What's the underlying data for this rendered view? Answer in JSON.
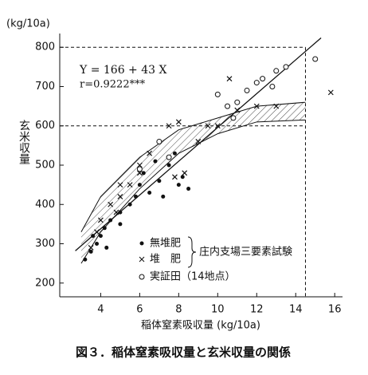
{
  "chart_data": {
    "type": "scatter",
    "title": "図３．稲体窒素吸収量と玄米収量の関係",
    "y_unit": "(kg/10a)",
    "y_label": "玄米収量",
    "x_label": "稲体窒素吸収量 (kg/10a)",
    "xlim": [
      1.9,
      16.4
    ],
    "ylim": [
      165,
      835
    ],
    "xticks": [
      4,
      6,
      8,
      10,
      12,
      14,
      16
    ],
    "yticks": [
      200,
      300,
      400,
      500,
      600,
      700,
      800
    ],
    "series": [
      {
        "name": "無堆肥",
        "color": "#111111",
        "marker": "dot",
        "x": [
          3.2,
          3.5,
          3.8,
          4.0,
          4.2,
          4.5,
          5.0,
          5.5,
          6.0,
          6.2,
          6.5,
          7.0,
          7.5,
          8.0,
          8.5,
          7.2,
          5.8,
          5.0,
          4.3,
          3.6,
          6.8,
          7.8,
          8.2
        ],
        "values": [
          260,
          280,
          300,
          320,
          340,
          360,
          380,
          400,
          450,
          480,
          430,
          460,
          500,
          450,
          440,
          420,
          420,
          350,
          290,
          320,
          510,
          530,
          470
        ]
      },
      {
        "name": "堆　肥",
        "color": "#111111",
        "marker": "cross",
        "x": [
          15.8,
          10.6,
          8.0,
          7.5,
          9.0,
          9.5,
          6.5,
          6.0,
          5.5,
          5.0,
          4.5,
          4.0,
          3.5,
          8.3,
          7.8,
          12.0,
          13.0,
          11.0,
          10.0,
          5.0,
          6.0,
          4.8,
          3.8
        ],
        "values": [
          685,
          720,
          610,
          600,
          560,
          600,
          530,
          500,
          450,
          420,
          400,
          360,
          290,
          480,
          470,
          650,
          650,
          640,
          600,
          450,
          480,
          380,
          330
        ]
      },
      {
        "name": "実証田（14地点）",
        "color": "#111111",
        "marker": "circle",
        "x": [
          10.5,
          11.0,
          11.5,
          12.0,
          12.3,
          12.8,
          13.0,
          13.5,
          15.0,
          10.0,
          10.8,
          7.0,
          6.0,
          7.5
        ],
        "values": [
          650,
          660,
          690,
          710,
          720,
          700,
          740,
          750,
          770,
          680,
          620,
          560,
          490,
          520
        ]
      }
    ],
    "group_label": "庄内支場三要素試験",
    "equation": "Y = 166 + 43 X",
    "r_label": "r=0.9222***",
    "regression": {
      "intercept": 166,
      "slope": 43,
      "x": [
        2.7,
        15.3
      ]
    },
    "band": {
      "x": [
        3,
        4,
        6,
        8,
        10,
        12,
        14.5
      ],
      "upper": [
        330,
        420,
        520,
        590,
        620,
        650,
        660
      ],
      "lower": [
        250,
        330,
        440,
        530,
        580,
        610,
        615
      ]
    },
    "ref_lines": {
      "y": [
        800,
        600
      ],
      "x": 14.5
    }
  }
}
